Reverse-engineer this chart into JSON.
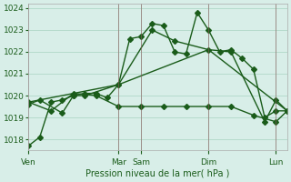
{
  "title": "",
  "xlabel": "Pression niveau de la mer( hPa )",
  "ylabel": "",
  "bg_color": "#d8eee8",
  "grid_color": "#b0d8c8",
  "line_color": "#1a5c1a",
  "ylim": [
    1017.5,
    1024.2
  ],
  "day_labels": [
    "Ven",
    "Mar",
    "Sam",
    "Dim",
    "Lun"
  ],
  "day_positions": [
    0,
    4,
    5,
    8,
    11
  ],
  "series1_x": [
    0,
    0.5,
    1.0,
    1.5,
    2.0,
    2.5,
    3.0,
    3.5,
    4.0,
    4.5,
    5.0,
    5.5,
    6.0,
    6.5,
    7.0,
    7.5,
    8.0,
    8.5,
    9.0,
    9.5,
    10.0,
    10.5,
    11.0,
    11.5
  ],
  "series1_y": [
    1017.7,
    1018.1,
    1019.7,
    1019.8,
    1020.0,
    1020.1,
    1020.1,
    1019.9,
    1020.5,
    1022.6,
    1022.7,
    1023.3,
    1023.2,
    1022.0,
    1021.9,
    1023.8,
    1023.0,
    1022.0,
    1022.1,
    1021.7,
    1021.2,
    1019.0,
    1019.3,
    1019.3
  ],
  "series2_x": [
    0,
    1.0,
    2.0,
    3.0,
    4.0,
    5.0,
    6.0,
    7.0,
    8.0,
    9.0,
    10.0,
    11.0,
    11.5
  ],
  "series2_y": [
    1019.7,
    1019.3,
    1020.1,
    1020.0,
    1019.5,
    1019.5,
    1019.5,
    1019.5,
    1019.5,
    1019.5,
    1019.1,
    1018.8,
    1019.3
  ],
  "series3_x": [
    0,
    4.0,
    8.0,
    11.5
  ],
  "series3_y": [
    1019.7,
    1020.5,
    1022.1,
    1019.3
  ],
  "series4_x": [
    0,
    0.5,
    1.5,
    2.0,
    2.5,
    4.0,
    5.5,
    6.5,
    8.0,
    9.0,
    10.5,
    11.0,
    11.5
  ],
  "series4_y": [
    1019.6,
    1019.8,
    1019.2,
    1020.0,
    1020.0,
    1020.5,
    1023.0,
    1022.5,
    1022.1,
    1022.0,
    1018.8,
    1019.8,
    1019.3
  ],
  "xlim": [
    0,
    11.5
  ]
}
